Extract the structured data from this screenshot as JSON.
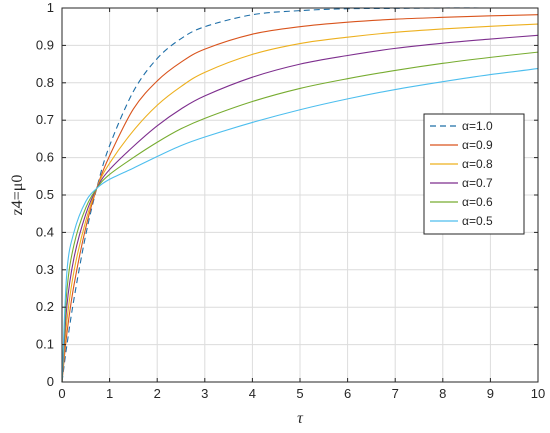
{
  "chart_data": {
    "type": "line",
    "title": "",
    "xlabel": "τ",
    "ylabel": "z4=μ0",
    "xlim": [
      0,
      10
    ],
    "ylim": [
      0,
      1
    ],
    "xticks": [
      0,
      1,
      2,
      3,
      4,
      5,
      6,
      7,
      8,
      9,
      10
    ],
    "yticks": [
      0,
      0.1,
      0.2,
      0.3,
      0.4,
      0.5,
      0.6,
      0.7,
      0.8,
      0.9,
      1
    ],
    "grid": true,
    "legend_position": "right",
    "x": [
      0,
      0.1,
      0.25,
      0.5,
      0.75,
      1,
      1.5,
      2,
      2.5,
      3,
      4,
      5,
      6,
      7,
      8,
      9,
      10
    ],
    "series": [
      {
        "name": "α=1.0",
        "color": "#1f6fa8",
        "dash": true,
        "values": [
          0,
          0.096,
          0.221,
          0.394,
          0.528,
          0.632,
          0.777,
          0.865,
          0.918,
          0.95,
          0.982,
          0.993,
          0.998,
          0.999,
          1.0,
          1.0,
          1.0
        ]
      },
      {
        "name": "α=0.9",
        "color": "#d9541d",
        "dash": false,
        "values": [
          0,
          0.127,
          0.258,
          0.413,
          0.526,
          0.605,
          0.73,
          0.805,
          0.855,
          0.89,
          0.93,
          0.95,
          0.962,
          0.97,
          0.975,
          0.979,
          0.982
        ]
      },
      {
        "name": "α=0.8",
        "color": "#edb01f",
        "dash": false,
        "values": [
          0,
          0.16,
          0.295,
          0.431,
          0.525,
          0.585,
          0.672,
          0.74,
          0.79,
          0.828,
          0.876,
          0.905,
          0.922,
          0.935,
          0.944,
          0.951,
          0.957
        ]
      },
      {
        "name": "α=0.7",
        "color": "#7e2f8e",
        "dash": false,
        "values": [
          0,
          0.2,
          0.331,
          0.449,
          0.523,
          0.568,
          0.63,
          0.685,
          0.73,
          0.765,
          0.815,
          0.85,
          0.873,
          0.892,
          0.906,
          0.917,
          0.927
        ]
      },
      {
        "name": "α=0.6",
        "color": "#77ac30",
        "dash": false,
        "values": [
          0,
          0.24,
          0.366,
          0.466,
          0.521,
          0.555,
          0.6,
          0.641,
          0.677,
          0.705,
          0.75,
          0.785,
          0.811,
          0.833,
          0.852,
          0.868,
          0.882
        ]
      },
      {
        "name": "α=0.5",
        "color": "#4dbeee",
        "dash": false,
        "values": [
          0,
          0.29,
          0.4,
          0.483,
          0.52,
          0.542,
          0.572,
          0.603,
          0.632,
          0.655,
          0.694,
          0.728,
          0.757,
          0.782,
          0.803,
          0.822,
          0.838
        ]
      }
    ]
  }
}
